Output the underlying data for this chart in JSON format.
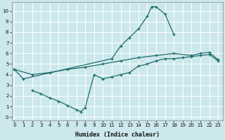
{
  "xlabel": "Humidex (Indice chaleur)",
  "bg_color": "#cce8ec",
  "grid_color": "#ffffff",
  "line_color": "#1e6b6b",
  "x_ticks": [
    0,
    1,
    2,
    3,
    4,
    5,
    6,
    7,
    8,
    9,
    10,
    11,
    12,
    13,
    14,
    15,
    16,
    17,
    18,
    19,
    20,
    21,
    22,
    23
  ],
  "y_ticks": [
    0,
    1,
    2,
    3,
    4,
    5,
    6,
    7,
    8,
    9,
    10
  ],
  "xlim": [
    -0.3,
    23.5
  ],
  "ylim": [
    -0.3,
    10.8
  ],
  "curve1_x": [
    0,
    1,
    11,
    12,
    13,
    14,
    15,
    15.5,
    16,
    17,
    18
  ],
  "curve1_y": [
    4.5,
    3.6,
    5.5,
    6.7,
    7.5,
    8.3,
    9.5,
    10.4,
    10.4,
    9.7,
    7.8
  ],
  "curve2_x": [
    0,
    2,
    4,
    6,
    8,
    10,
    12,
    14,
    16,
    18,
    20,
    21,
    22,
    23
  ],
  "curve2_y": [
    4.5,
    4.0,
    4.2,
    4.5,
    4.7,
    5.0,
    5.3,
    5.6,
    5.8,
    6.0,
    5.8,
    6.0,
    6.1,
    5.4
  ],
  "curve3_x": [
    2,
    3,
    4,
    5,
    6,
    7,
    7.5,
    8,
    9,
    10,
    11,
    12,
    13,
    14,
    15,
    16,
    17,
    18,
    19,
    20,
    21,
    22,
    23
  ],
  "curve3_y": [
    2.5,
    2.2,
    1.8,
    1.5,
    1.1,
    0.7,
    0.5,
    0.9,
    4.0,
    3.6,
    3.8,
    4.0,
    4.2,
    4.8,
    5.0,
    5.3,
    5.5,
    5.5,
    5.6,
    5.7,
    5.8,
    5.9,
    5.3
  ]
}
